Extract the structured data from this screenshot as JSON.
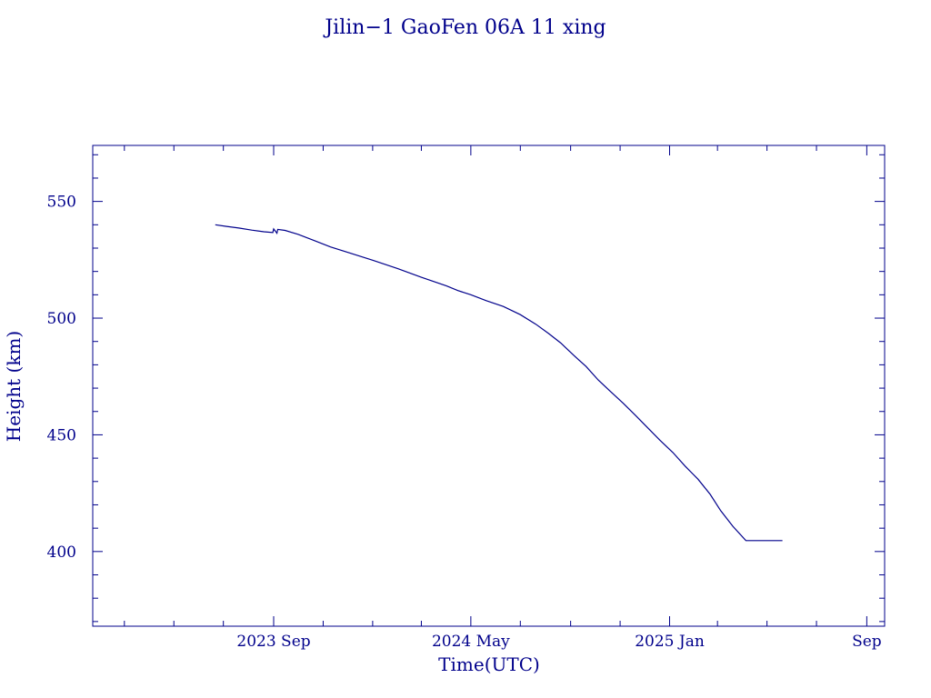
{
  "chart_data": {
    "type": "line",
    "title": "Jilin−1 GaoFen 06A 11 xing",
    "xlabel": "Time(UTC)",
    "ylabel": "Height (km)",
    "xlim": [
      "2023-01-21",
      "2025-09-23"
    ],
    "ylim": [
      368,
      574
    ],
    "x_ticks": [
      {
        "date": "2023-09-01",
        "label": "2023 Sep"
      },
      {
        "date": "2024-05-01",
        "label": "2024 May"
      },
      {
        "date": "2025-01-01",
        "label": "2025 Jan"
      },
      {
        "date": "2025-09-01",
        "label": "Sep"
      }
    ],
    "y_ticks": [
      400,
      450,
      500,
      550
    ],
    "grid": false,
    "colors": {
      "axis": "#00008b",
      "line": "#00008b",
      "text": "#00008b"
    },
    "series": [
      {
        "x": [
          "2023-06-21",
          "2023-07-05",
          "2023-07-20",
          "2023-08-05",
          "2023-08-20",
          "2023-08-31",
          "2023-09-01",
          "2023-09-05",
          "2023-09-06",
          "2023-09-15",
          "2023-10-01",
          "2023-10-20",
          "2023-11-10",
          "2023-12-01",
          "2024-01-01",
          "2024-02-01",
          "2024-03-01",
          "2024-04-01",
          "2024-04-15",
          "2024-05-01",
          "2024-05-20",
          "2024-06-10",
          "2024-07-01",
          "2024-07-20",
          "2024-08-05",
          "2024-08-20",
          "2024-09-05",
          "2024-09-20",
          "2024-10-05",
          "2024-10-20",
          "2024-11-05",
          "2024-11-20",
          "2024-12-05",
          "2024-12-20",
          "2025-01-05",
          "2025-01-20",
          "2025-02-05",
          "2025-02-20",
          "2025-03-05",
          "2025-03-20",
          "2025-04-05",
          "2025-04-20",
          "2025-05-05",
          "2025-05-20"
        ],
        "y": [
          540,
          539.3,
          538.6,
          537.7,
          537.0,
          536.7,
          538.2,
          536.4,
          538.0,
          537.6,
          535.9,
          533.4,
          530.5,
          528.2,
          524.8,
          521.2,
          517.5,
          513.8,
          511.8,
          510.0,
          507.5,
          505.0,
          501.5,
          497.4,
          493.4,
          489.3,
          484.0,
          479.3,
          473.5,
          468.6,
          463.5,
          458.3,
          453.0,
          447.7,
          442.4,
          436.6,
          431.0,
          424.5,
          417.5,
          410.8,
          404.7,
          404.7,
          404.7,
          404.7
        ]
      }
    ]
  }
}
